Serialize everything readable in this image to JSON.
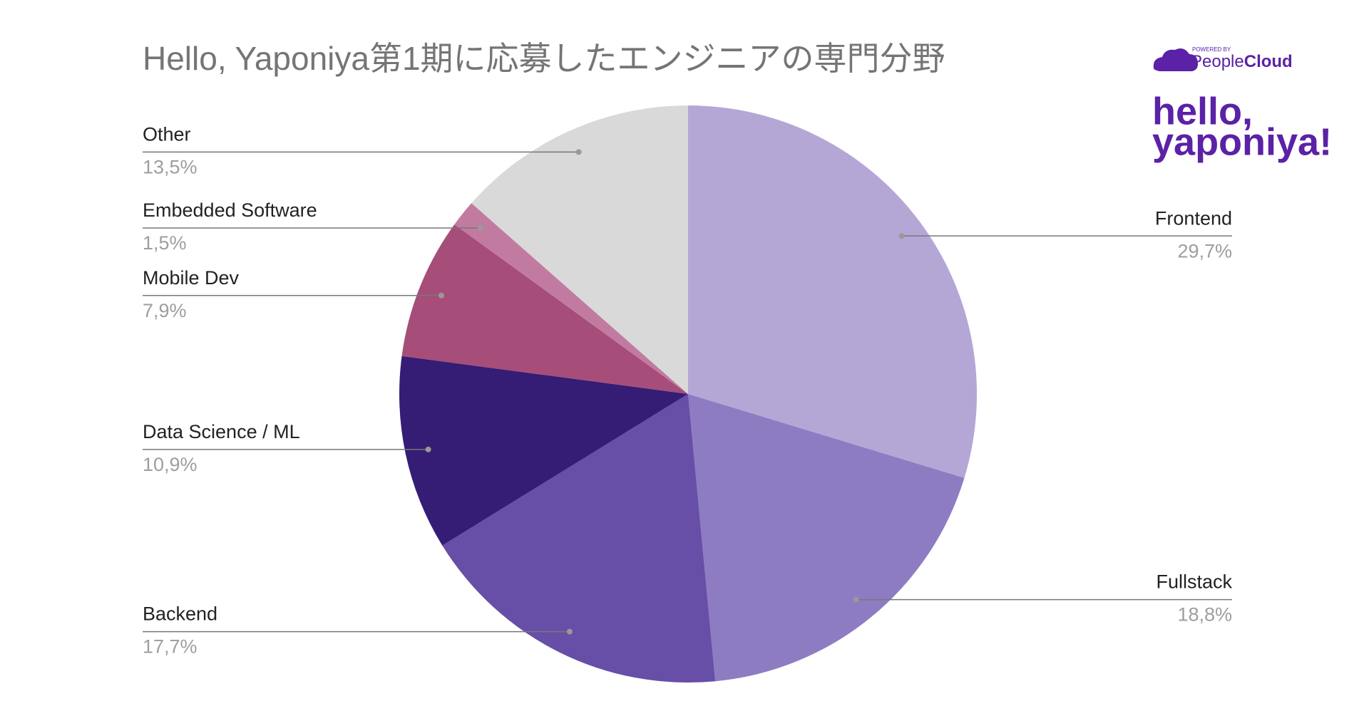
{
  "chart_data": {
    "type": "pie",
    "title": "Hello, Yaponiya第1期に応募したエンジニアの専門分野",
    "categories": [
      "Frontend",
      "Fullstack",
      "Backend",
      "Data Science / ML",
      "Mobile Dev",
      "Embedded Software",
      "Other"
    ],
    "values": [
      29.7,
      18.8,
      17.7,
      10.9,
      7.9,
      1.5,
      13.5
    ],
    "value_labels": [
      "29,7%",
      "18,8%",
      "17,7%",
      "10,9%",
      "7,9%",
      "1,5%",
      "13,5%"
    ],
    "colors": [
      "#b4a7d6",
      "#8e7cc3",
      "#674ea7",
      "#351c75",
      "#a64d79",
      "#c27ba0",
      "#d9d9d9"
    ]
  },
  "branding": {
    "powered_by": "POWERED BY",
    "provider": "People",
    "provider_bold": "Cloud",
    "logo_line1": "hello,",
    "logo_line2": "yaponiya!"
  }
}
